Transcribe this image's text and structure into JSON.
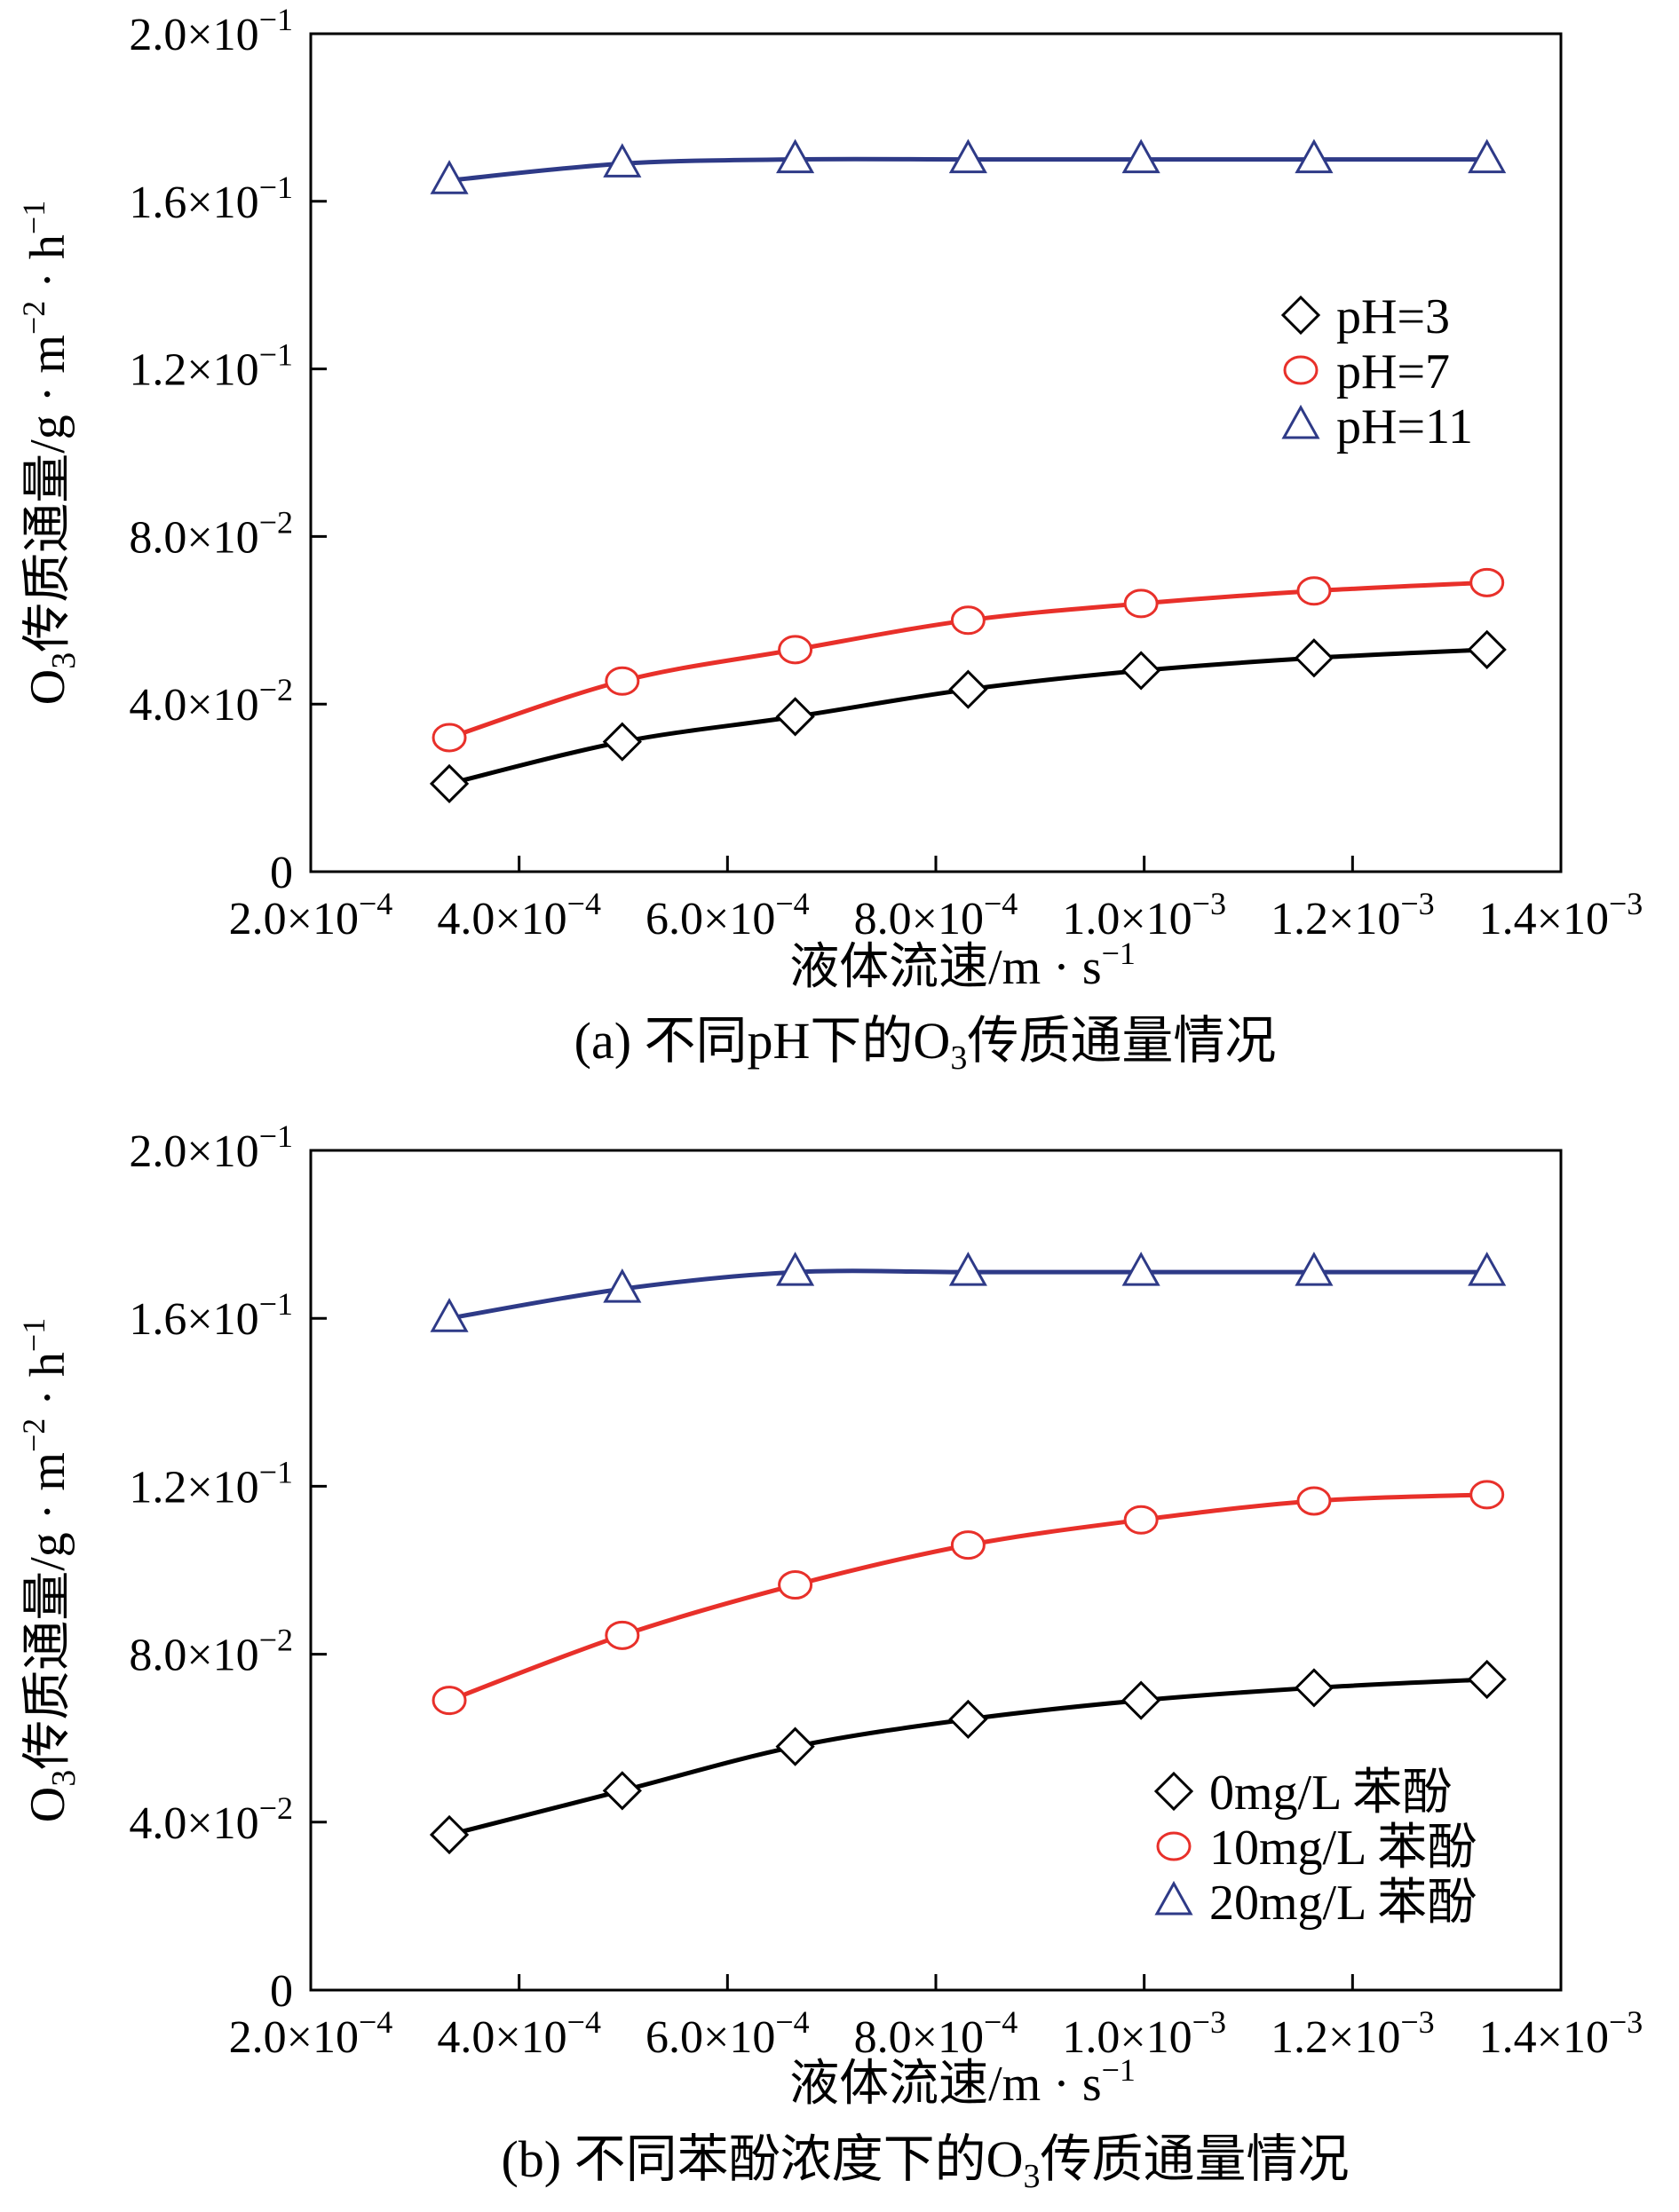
{
  "chart_data": [
    {
      "type": "line",
      "caption": "(a) 不同pH下的O₃传质通量情况",
      "xlabel": "液体流速/m · s⁻¹",
      "ylabel": "O₃传质通量/g · m⁻² · h⁻¹",
      "xlim": [
        0.0002,
        0.0014
      ],
      "ylim": [
        0,
        0.2
      ],
      "xticks": [
        0.0002,
        0.0004,
        0.0006,
        0.0008,
        0.001,
        0.0012,
        0.0014
      ],
      "xtick_labels": [
        {
          "m": "2.0×10",
          "e": "−4"
        },
        {
          "m": "4.0×10",
          "e": "−4"
        },
        {
          "m": "6.0×10",
          "e": "−4"
        },
        {
          "m": "8.0×10",
          "e": "−4"
        },
        {
          "m": "1.0×10",
          "e": "−3"
        },
        {
          "m": "1.2×10",
          "e": "−3"
        },
        {
          "m": "1.4×10",
          "e": "−3"
        }
      ],
      "yticks": [
        0,
        0.04,
        0.08,
        0.12,
        0.16,
        0.2
      ],
      "ytick_labels": [
        {
          "m": "0",
          "e": ""
        },
        {
          "m": "4.0×10",
          "e": "−2"
        },
        {
          "m": "8.0×10",
          "e": "−2"
        },
        {
          "m": "1.2×10",
          "e": "−1"
        },
        {
          "m": "1.6×10",
          "e": "−1"
        },
        {
          "m": "2.0×10",
          "e": "−1"
        }
      ],
      "x": [
        0.000333,
        0.000499,
        0.000665,
        0.000831,
        0.000997,
        0.001163,
        0.001329
      ],
      "legend_position": "center-right",
      "series": [
        {
          "name": "pH=3",
          "marker": "diamond",
          "color": "#000000",
          "values": [
            0.021,
            0.031,
            0.037,
            0.0435,
            0.048,
            0.051,
            0.053
          ]
        },
        {
          "name": "pH=7",
          "marker": "circle",
          "color": "#e8302a",
          "values": [
            0.032,
            0.0455,
            0.053,
            0.06,
            0.064,
            0.067,
            0.069
          ]
        },
        {
          "name": "pH=11",
          "marker": "triangle",
          "color": "#2e3a87",
          "values": [
            0.165,
            0.169,
            0.17,
            0.17,
            0.17,
            0.17,
            0.17
          ]
        }
      ]
    },
    {
      "type": "line",
      "caption": "(b) 不同苯酚浓度下的O₃传质通量情况",
      "xlabel": "液体流速/m · s⁻¹",
      "ylabel": "O₃传质通量/g · m⁻² · h⁻¹",
      "xlim": [
        0.0002,
        0.0014
      ],
      "ylim": [
        0,
        0.2
      ],
      "xticks": [
        0.0002,
        0.0004,
        0.0006,
        0.0008,
        0.001,
        0.0012,
        0.0014
      ],
      "xtick_labels": [
        {
          "m": "2.0×10",
          "e": "−4"
        },
        {
          "m": "4.0×10",
          "e": "−4"
        },
        {
          "m": "6.0×10",
          "e": "−4"
        },
        {
          "m": "8.0×10",
          "e": "−4"
        },
        {
          "m": "1.0×10",
          "e": "−3"
        },
        {
          "m": "1.2×10",
          "e": "−3"
        },
        {
          "m": "1.4×10",
          "e": "−3"
        }
      ],
      "yticks": [
        0,
        0.04,
        0.08,
        0.12,
        0.16,
        0.2
      ],
      "ytick_labels": [
        {
          "m": "0",
          "e": ""
        },
        {
          "m": "4.0×10",
          "e": "−2"
        },
        {
          "m": "8.0×10",
          "e": "−2"
        },
        {
          "m": "1.2×10",
          "e": "−1"
        },
        {
          "m": "1.6×10",
          "e": "−1"
        },
        {
          "m": "2.0×10",
          "e": "−1"
        }
      ],
      "x": [
        0.000333,
        0.000499,
        0.000665,
        0.000831,
        0.000997,
        0.001163,
        0.001329
      ],
      "legend_position": "bottom-right",
      "series": [
        {
          "name": "0mg/L 苯酚",
          "marker": "diamond",
          "color": "#000000",
          "values": [
            0.037,
            0.0475,
            0.058,
            0.0645,
            0.069,
            0.072,
            0.074
          ]
        },
        {
          "name": "10mg/L 苯酚",
          "marker": "circle",
          "color": "#e8302a",
          "values": [
            0.069,
            0.0845,
            0.0965,
            0.106,
            0.112,
            0.1165,
            0.118
          ]
        },
        {
          "name": "20mg/L 苯酚",
          "marker": "triangle",
          "color": "#2e3a87",
          "values": [
            0.16,
            0.167,
            0.171,
            0.171,
            0.171,
            0.171,
            0.171
          ]
        }
      ]
    }
  ]
}
